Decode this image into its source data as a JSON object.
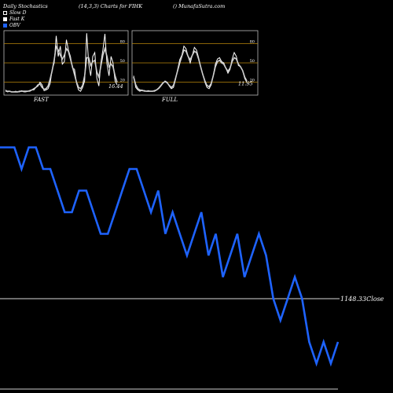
{
  "header": {
    "title": "Daily Stochastics",
    "params": "(14,3,3) Charts for FIHK",
    "site": "() MunafaSutra.com"
  },
  "legend": [
    {
      "label": "Slow D",
      "color": "#ffffff"
    },
    {
      "label": "Fast K",
      "color": "#ffffff"
    },
    {
      "label": "OBV",
      "color": "#1e63ff"
    }
  ],
  "chart_data": [
    {
      "type": "line",
      "title": "FAST",
      "ylim": [
        0,
        100
      ],
      "yticks": [
        "20",
        "50",
        "80"
      ],
      "last_value_label": "16.44",
      "series": [
        {
          "values": [
            8,
            5,
            6,
            5,
            5,
            6,
            5,
            5,
            7,
            5,
            5,
            6,
            6,
            8,
            8,
            12,
            14,
            20,
            16,
            7,
            8,
            10,
            18,
            40,
            50,
            92,
            60,
            76,
            48,
            52,
            86,
            70,
            60,
            42,
            40,
            18,
            8,
            6,
            12,
            22,
            96,
            48,
            30,
            60,
            66,
            26,
            14,
            50,
            70,
            95,
            48,
            30,
            60,
            50,
            22,
            16
          ]
        },
        {
          "values": [
            6,
            6,
            6,
            5,
            5,
            5,
            5,
            6,
            6,
            6,
            6,
            6,
            7,
            8,
            10,
            12,
            16,
            17,
            12,
            9,
            10,
            14,
            25,
            38,
            55,
            75,
            70,
            62,
            56,
            62,
            72,
            68,
            56,
            44,
            32,
            20,
            12,
            10,
            15,
            30,
            58,
            58,
            46,
            52,
            54,
            36,
            28,
            45,
            62,
            72,
            60,
            44,
            48,
            44,
            30,
            20
          ]
        }
      ]
    },
    {
      "type": "line",
      "title": "FULL",
      "ylim": [
        0,
        100
      ],
      "yticks": [
        "20",
        "50",
        "80"
      ],
      "last_value_label": "11.95",
      "series": [
        {
          "values": [
            30,
            12,
            8,
            6,
            8,
            6,
            6,
            7,
            6,
            6,
            6,
            8,
            10,
            14,
            18,
            22,
            20,
            14,
            10,
            12,
            24,
            40,
            55,
            62,
            76,
            72,
            60,
            50,
            62,
            74,
            70,
            58,
            44,
            32,
            20,
            12,
            10,
            16,
            30,
            48,
            56,
            58,
            52,
            50,
            42,
            34,
            40,
            56,
            66,
            60,
            46,
            44,
            38,
            26,
            20
          ]
        },
        {
          "values": [
            28,
            16,
            10,
            8,
            7,
            7,
            6,
            6,
            6,
            6,
            7,
            8,
            11,
            15,
            19,
            21,
            19,
            15,
            12,
            15,
            26,
            38,
            50,
            60,
            70,
            68,
            60,
            55,
            62,
            68,
            66,
            56,
            44,
            32,
            22,
            15,
            13,
            18,
            30,
            44,
            52,
            54,
            50,
            48,
            42,
            37,
            42,
            52,
            58,
            56,
            48,
            44,
            38,
            28,
            22
          ]
        }
      ]
    },
    {
      "type": "line",
      "title": "",
      "series": [
        {
          "name": "OBV",
          "values": [
            10,
            10,
            10,
            9,
            10,
            10,
            9,
            9,
            8,
            7,
            7,
            8,
            8,
            7,
            6,
            6,
            7,
            8,
            9,
            9,
            8,
            7,
            8,
            6,
            7,
            6,
            5,
            6,
            7,
            5,
            6,
            4,
            5,
            6,
            4,
            5,
            6,
            5,
            3,
            2,
            3,
            4,
            3,
            1,
            0,
            1,
            0,
            1
          ]
        }
      ],
      "ylim": [
        -1,
        11
      ],
      "reference_label": "1148.33Close"
    }
  ]
}
